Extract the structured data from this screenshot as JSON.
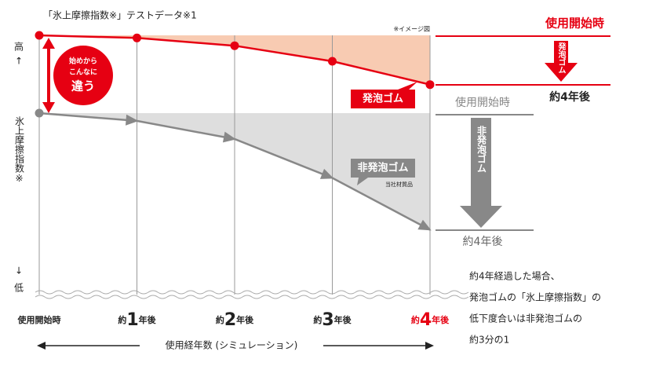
{
  "chart_data": {
    "type": "line",
    "title": "「氷上摩擦指数※」テストデータ※1",
    "image_note": "※イメージ図",
    "categories": [
      "使用開始時",
      "約1年後",
      "約2年後",
      "約3年後",
      "約4年後"
    ],
    "series": [
      {
        "name": "発泡ゴム",
        "color": "#e60012",
        "values": [
          100,
          99,
          96,
          90,
          81
        ]
      },
      {
        "name": "非発泡ゴム",
        "color": "#888888",
        "values": [
          70,
          67,
          60,
          45,
          25
        ],
        "note": "当社材質品"
      }
    ],
    "ylim": [
      0,
      100
    ],
    "y_axis": {
      "high": "高",
      "low": "低",
      "label": "氷上摩擦指数※"
    },
    "callout": [
      "始めから",
      "こんなに",
      "違う"
    ],
    "x_label": "使用経年数 (シミュレーション)",
    "comparison": {
      "start_label": "使用開始時",
      "end_label": "約4年後"
    },
    "summary": [
      "約4年経過した場合、",
      "発泡ゴムの「氷上摩擦指数」の",
      "低下度合いは非発泡ゴムの",
      "約3分の1"
    ]
  }
}
